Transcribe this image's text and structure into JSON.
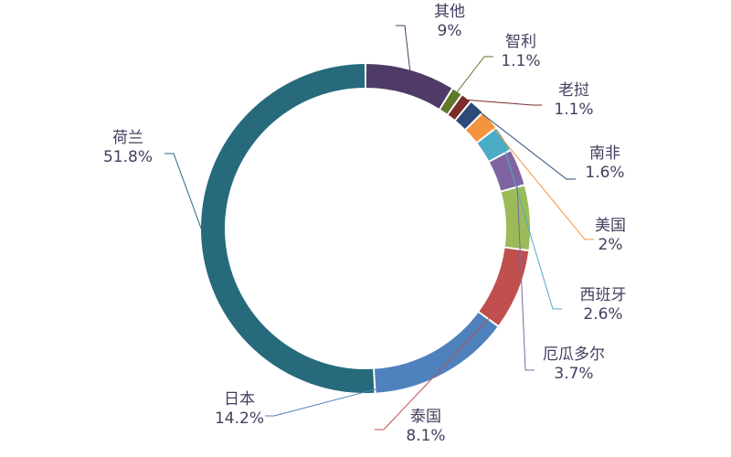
{
  "chart_data": {
    "type": "pie",
    "title": "",
    "legend": "none",
    "slices": [
      {
        "name": "其他",
        "value": 9,
        "label": "9%",
        "color": "#4e3b66"
      },
      {
        "name": "智利",
        "value": 1.1,
        "label": "1.1%",
        "color": "#60772c"
      },
      {
        "name": "老挝",
        "value": 1.1,
        "label": "1.1%",
        "color": "#7d2b2b"
      },
      {
        "name": "南非",
        "value": 1.6,
        "label": "1.6%",
        "color": "#2d4a78"
      },
      {
        "name": "美国",
        "value": 2,
        "label": "2%",
        "color": "#f3943f"
      },
      {
        "name": "西班牙",
        "value": 2.6,
        "label": "2.6%",
        "color": "#4bacc6"
      },
      {
        "name": "厄瓜多尔",
        "value": 3.7,
        "label": "3.7%",
        "color": "#8064a2"
      },
      {
        "name": "",
        "value": 6.5,
        "label": "",
        "color": "#9bbb59"
      },
      {
        "name": "泰国",
        "value": 8.1,
        "label": "8.1%",
        "color": "#c0504d"
      },
      {
        "name": "日本",
        "value": 14.2,
        "label": "14.2%",
        "color": "#4f81bd"
      },
      {
        "name": "荷兰",
        "value": 51.8,
        "label": "51.8%",
        "color": "#266a7c"
      }
    ]
  }
}
